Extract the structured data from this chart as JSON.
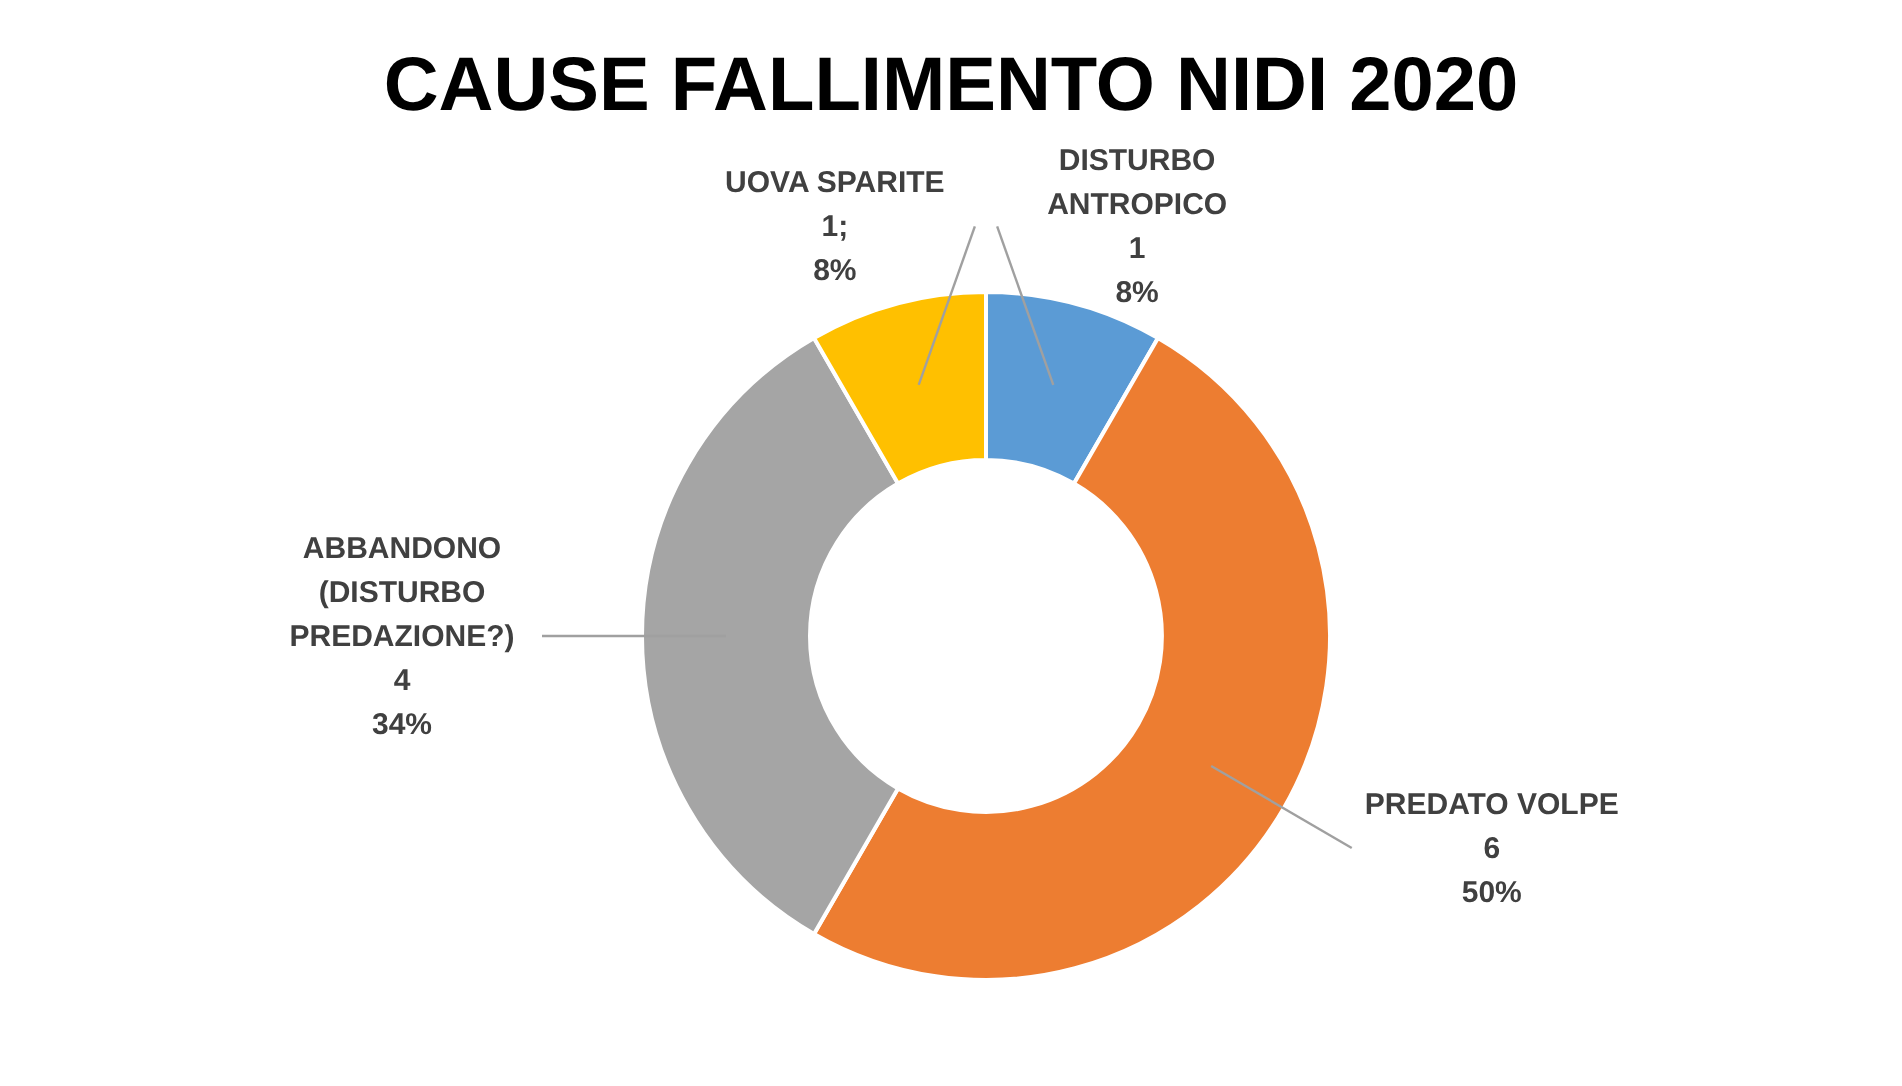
{
  "chart_data": {
    "type": "donut",
    "title": "CAUSE FALLIMENTO NIDI 2020",
    "categories": [
      "DISTURBO\nANTROPICO",
      "PREDATO VOLPE",
      "ABBANDONO\n(DISTURBO\nPREDAZIONE?)",
      "UOVA  SPARITE"
    ],
    "values": [
      1,
      6,
      4,
      1
    ],
    "value_labels": [
      "1\n8%",
      "6\n50%",
      "4\n34%",
      "1;\n8%"
    ],
    "colors": [
      "#5b9bd5",
      "#ed7d31",
      "#a5a5a5",
      "#ffc000"
    ],
    "legend": false
  }
}
